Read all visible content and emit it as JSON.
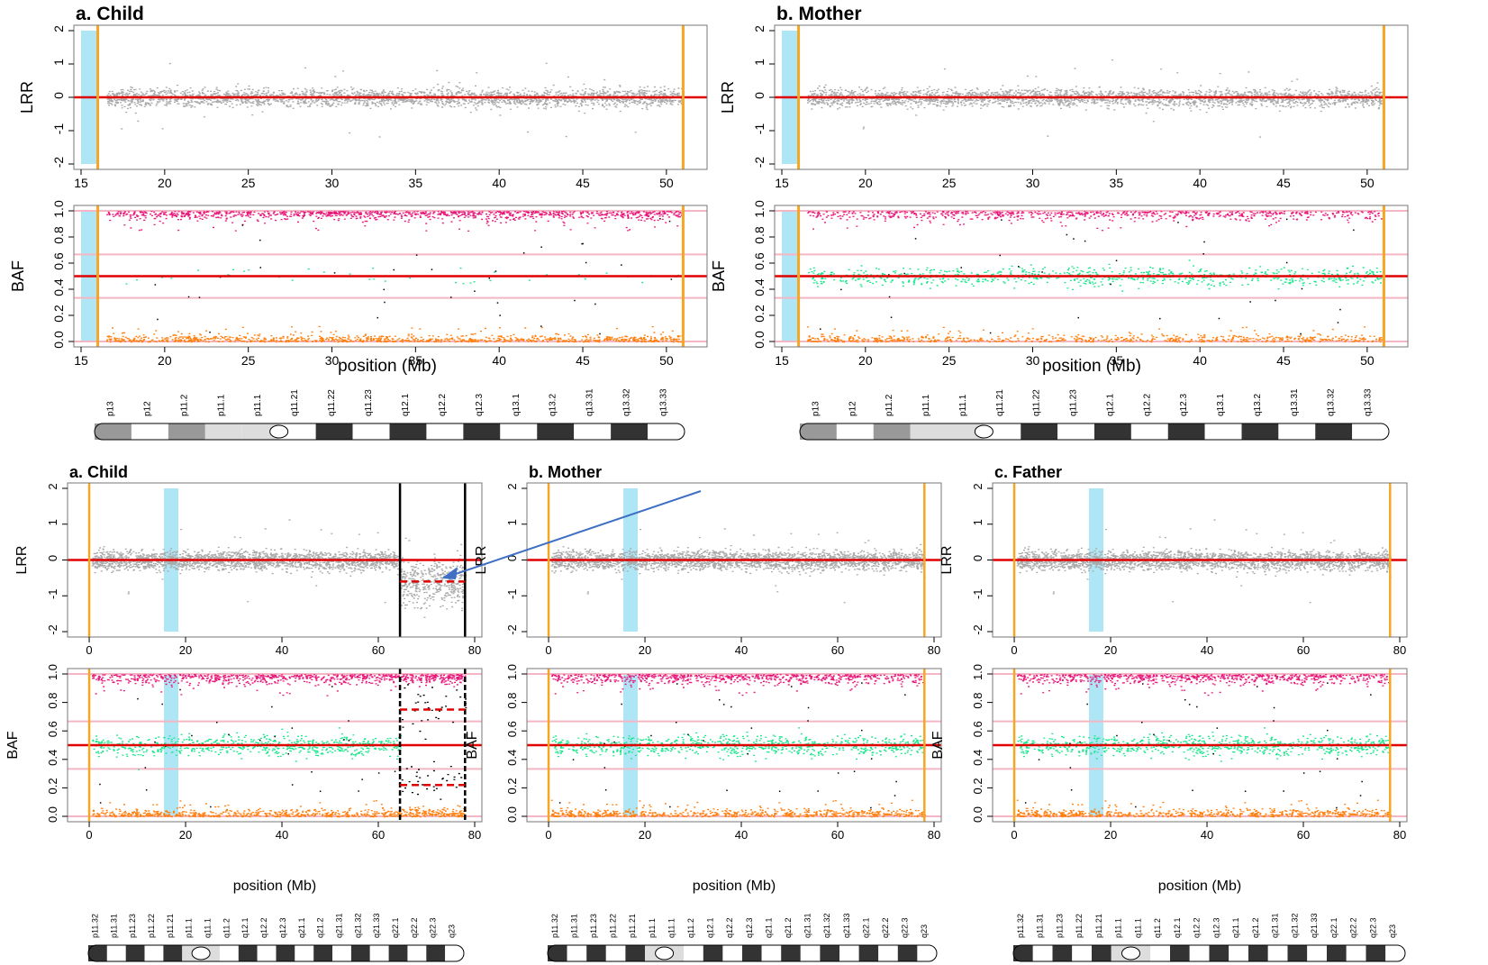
{
  "colors": {
    "lrr_points": "#a9a9a9",
    "baf_high": "#e8177a",
    "baf_mid": "#19e68a",
    "baf_low": "#ff7f0e",
    "baf_other": "#000000",
    "red_line": "#e00000",
    "pink_line": "#f4b6c2",
    "orange_line": "#f5a623",
    "blue_band": "#aee6f5",
    "black_line": "#000000",
    "arrow": "#3e6fc4"
  },
  "chart_data": [
    {
      "panel": "top-a",
      "title": "a. Child",
      "type": "scatter",
      "xticks": [
        15,
        20,
        25,
        30,
        35,
        40,
        45,
        50
      ],
      "xlim": [
        15,
        52
      ],
      "lrr_ylim": [
        -2,
        2
      ],
      "baf_ylim": [
        0,
        1
      ],
      "lrr_yticks": [
        "-2",
        "-1",
        "0",
        "1",
        "2"
      ],
      "baf_yticks": [
        "0.0",
        "0.2",
        "0.4",
        "0.6",
        "0.8",
        "1.0"
      ],
      "ylabel_lrr": "LRR",
      "ylabel_baf": "BAF",
      "xlabel": "position (Mb)",
      "blue_band": [
        15,
        16
      ],
      "orange_lines": [
        16,
        51
      ],
      "het_fraction": 0.02,
      "ideogram": {
        "bands": [
          "p13",
          "p12",
          "p11.2",
          "p11.1",
          "p11.1",
          "q11.21",
          "q11.22",
          "q11.23",
          "q12.1",
          "q12.2",
          "q12.3",
          "q13.1",
          "q13.2",
          "q13.31",
          "q13.32",
          "q13.33"
        ]
      }
    },
    {
      "panel": "top-b",
      "title": "b. Mother",
      "type": "scatter",
      "xticks": [
        15,
        20,
        25,
        30,
        35,
        40,
        45,
        50
      ],
      "xlim": [
        15,
        52
      ],
      "lrr_ylim": [
        -2,
        2
      ],
      "baf_ylim": [
        0,
        1
      ],
      "lrr_yticks": [
        "-2",
        "-1",
        "0",
        "1",
        "2"
      ],
      "baf_yticks": [
        "0.0",
        "0.2",
        "0.4",
        "0.6",
        "0.8",
        "1.0"
      ],
      "ylabel_lrr": "LRR",
      "ylabel_baf": "BAF",
      "xlabel": "position (Mb)",
      "blue_band": [
        15,
        16
      ],
      "orange_lines": [
        16,
        51
      ],
      "het_fraction": 0.35,
      "ideogram": {
        "bands": [
          "p13",
          "p12",
          "p11.2",
          "p11.1",
          "p11.1",
          "q11.21",
          "q11.22",
          "q11.23",
          "q12.1",
          "q12.2",
          "q12.3",
          "q13.1",
          "q13.2",
          "q13.31",
          "q13.32",
          "q13.33"
        ]
      }
    },
    {
      "panel": "bottom-a",
      "title": "a. Child",
      "type": "scatter",
      "xticks": [
        0,
        20,
        40,
        60,
        80
      ],
      "xlim": [
        -3,
        80
      ],
      "lrr_ylim": [
        -2,
        2
      ],
      "baf_ylim": [
        0,
        1
      ],
      "lrr_yticks": [
        "-2",
        "-1",
        "0",
        "1",
        "2"
      ],
      "baf_yticks": [
        "0.0",
        "0.2",
        "0.4",
        "0.6",
        "0.8",
        "1.0"
      ],
      "ylabel_lrr": "LRR",
      "ylabel_baf": "BAF",
      "xlabel": "position (Mb)",
      "blue_band": [
        15.5,
        18.5
      ],
      "orange_lines": [
        0
      ],
      "black_lines": [
        64.5,
        78
      ],
      "deletion": {
        "start": 64.5,
        "end": 78,
        "lrr_mean": -0.6,
        "baf_bands": [
          0.22,
          0.75
        ]
      },
      "het_fraction": 0.35,
      "ideogram": {
        "bands": [
          "p11.32",
          "p11.31",
          "p11.23",
          "p11.22",
          "p11.21",
          "p11.1",
          "q11.1",
          "q11.2",
          "q12.1",
          "q12.2",
          "q12.3",
          "q21.1",
          "q21.2",
          "q21.31",
          "q21.32",
          "q21.33",
          "q22.1",
          "q22.2",
          "q22.3",
          "q23"
        ]
      }
    },
    {
      "panel": "bottom-b",
      "title": "b. Mother",
      "type": "scatter",
      "xticks": [
        0,
        20,
        40,
        60,
        80
      ],
      "xlim": [
        -3,
        80
      ],
      "lrr_ylim": [
        -2,
        2
      ],
      "baf_ylim": [
        0,
        1
      ],
      "lrr_yticks": [
        "-2",
        "-1",
        "0",
        "1",
        "2"
      ],
      "baf_yticks": [
        "0.0",
        "0.2",
        "0.4",
        "0.6",
        "0.8",
        "1.0"
      ],
      "ylabel_lrr": "LRR",
      "ylabel_baf": "BAF",
      "xlabel": "position (Mb)",
      "blue_band": [
        15.5,
        18.5
      ],
      "orange_lines": [
        0,
        78
      ],
      "het_fraction": 0.35,
      "ideogram": {
        "bands": [
          "p11.32",
          "p11.31",
          "p11.23",
          "p11.22",
          "p11.21",
          "p11.1",
          "q11.1",
          "q11.2",
          "q12.1",
          "q12.2",
          "q12.3",
          "q21.1",
          "q21.2",
          "q21.31",
          "q21.32",
          "q21.33",
          "q22.1",
          "q22.2",
          "q22.3",
          "q23"
        ]
      }
    },
    {
      "panel": "bottom-c",
      "title": "c. Father",
      "type": "scatter",
      "xticks": [
        0,
        20,
        40,
        60,
        80
      ],
      "xlim": [
        -3,
        80
      ],
      "lrr_ylim": [
        -2,
        2
      ],
      "baf_ylim": [
        0,
        1
      ],
      "lrr_yticks": [
        "-2",
        "-1",
        "0",
        "1",
        "2"
      ],
      "baf_yticks": [
        "0.0",
        "0.2",
        "0.4",
        "0.6",
        "0.8",
        "1.0"
      ],
      "ylabel_lrr": "LRR",
      "ylabel_baf": "BAF",
      "xlabel": "position (Mb)",
      "blue_band": [
        15.5,
        18.5
      ],
      "orange_lines": [
        0,
        78
      ],
      "het_fraction": 0.35,
      "ideogram": {
        "bands": [
          "p11.32",
          "p11.31",
          "p11.23",
          "p11.22",
          "p11.21",
          "p11.1",
          "q11.1",
          "q11.2",
          "q12.1",
          "q12.2",
          "q12.3",
          "q21.1",
          "q21.2",
          "q21.31",
          "q21.32",
          "q21.33",
          "q22.1",
          "q22.2",
          "q22.3",
          "q23"
        ]
      }
    }
  ]
}
